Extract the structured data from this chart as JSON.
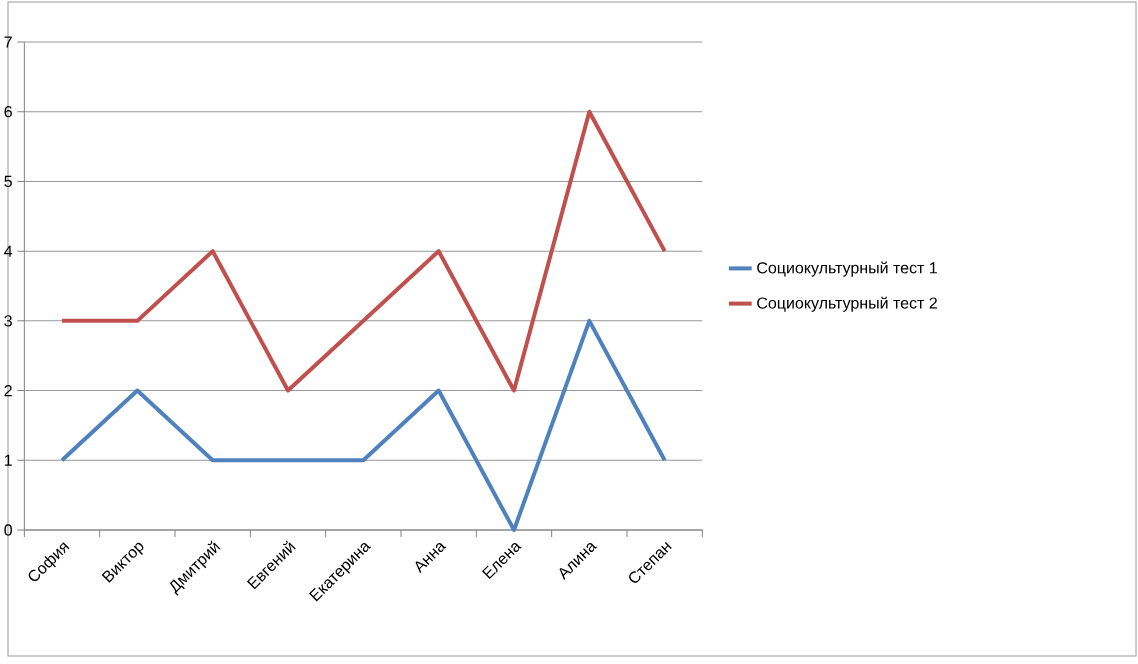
{
  "chart_data": {
    "type": "line",
    "categories": [
      "София",
      "Виктор",
      "Дмитрий",
      "Евгений",
      "Екатерина",
      "Анна",
      "Елена",
      "Алина",
      "Степан"
    ],
    "series": [
      {
        "name": "Социокультурный тест 1",
        "color": "#4f81bd",
        "values": [
          1,
          2,
          1,
          1,
          1,
          2,
          0,
          3,
          1
        ]
      },
      {
        "name": "Социокультурный тест 2",
        "color": "#c0504d",
        "values": [
          3,
          3,
          4,
          2,
          3,
          4,
          2,
          6,
          4
        ]
      }
    ],
    "ylim": [
      0,
      7
    ],
    "yticks": [
      0,
      1,
      2,
      3,
      4,
      5,
      6,
      7
    ],
    "grid": "y",
    "legend": "right",
    "marker": "none",
    "line_style": "solid"
  }
}
